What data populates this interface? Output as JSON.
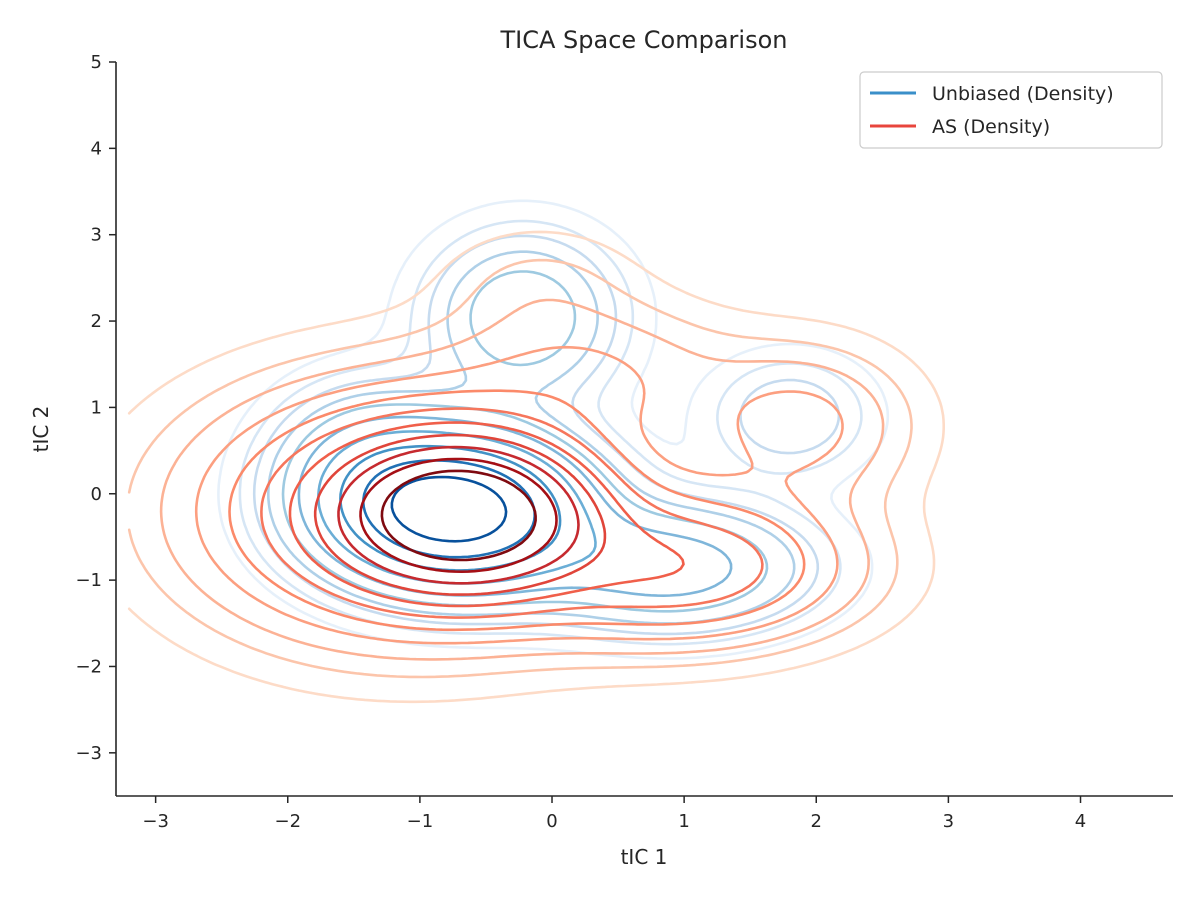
{
  "chart_data": {
    "type": "contour",
    "title": "TICA Space Comparison",
    "xlabel": "tIC 1",
    "ylabel": "tIC 2",
    "xlim": [
      -3.3,
      4.7
    ],
    "ylim": [
      -3.5,
      5.0
    ],
    "xticks": [
      -3,
      -2,
      -1,
      0,
      1,
      2,
      3,
      4
    ],
    "yticks": [
      -3,
      -2,
      -1,
      0,
      1,
      2,
      3,
      4,
      5
    ],
    "xtick_labels": [
      "−3",
      "−2",
      "−1",
      "0",
      "1",
      "2",
      "3",
      "4"
    ],
    "ytick_labels": [
      "−3",
      "−2",
      "−1",
      "0",
      "1",
      "2",
      "3",
      "4",
      "5"
    ],
    "grid": false,
    "legend_position": "top-right",
    "series": [
      {
        "name": "Unbiased (Density)",
        "color": "#3a8fc9",
        "level_colors": [
          "#e6f0fa",
          "#d6e6f5",
          "#c6dbef",
          "#afd0e8",
          "#9ecae1",
          "#7fb6da",
          "#6baed6",
          "#4292c6",
          "#2171b5",
          "#08519c"
        ],
        "components": [
          {
            "mx": -0.72,
            "my": -0.2,
            "sx": 0.6,
            "sy": 0.55,
            "w": 1.0
          },
          {
            "mx": -0.22,
            "my": 2.05,
            "sx": 0.45,
            "sy": 0.6,
            "w": 0.22
          },
          {
            "mx": 0.9,
            "my": -0.85,
            "sx": 0.65,
            "sy": 0.45,
            "w": 0.28
          },
          {
            "mx": 1.8,
            "my": 0.9,
            "sx": 0.4,
            "sy": 0.45,
            "w": 0.1
          },
          {
            "mx": -1.4,
            "my": 0.3,
            "sx": 0.45,
            "sy": 0.6,
            "w": 0.2
          }
        ],
        "levels": [
          0.018,
          0.04,
          0.065,
          0.1,
          0.15,
          0.22,
          0.33,
          0.48,
          0.65,
          0.85
        ]
      },
      {
        "name": "AS (Density)",
        "color": "#e8453c",
        "level_colors": [
          "#fddbc7",
          "#fcc5ab",
          "#fcb295",
          "#fc9f80",
          "#fb8a6a",
          "#f6765c",
          "#f05f4a",
          "#e0453a",
          "#c62a2f",
          "#a50f15",
          "#7f0a10"
        ],
        "components": [
          {
            "mx": -0.68,
            "my": -0.25,
            "sx": 0.55,
            "sy": 0.5,
            "w": 1.0
          },
          {
            "mx": -1.1,
            "my": -0.2,
            "sx": 1.0,
            "sy": 0.9,
            "w": 0.28
          },
          {
            "mx": 1.0,
            "my": -0.85,
            "sx": 0.8,
            "sy": 0.55,
            "w": 0.22
          },
          {
            "mx": 1.9,
            "my": 0.8,
            "sx": 0.55,
            "sy": 0.6,
            "w": 0.09
          },
          {
            "mx": 0.3,
            "my": 1.4,
            "sx": 0.7,
            "sy": 0.55,
            "w": 0.07
          },
          {
            "mx": -0.1,
            "my": 2.45,
            "sx": 0.5,
            "sy": 0.45,
            "w": 0.03
          }
        ],
        "levels": [
          0.014,
          0.03,
          0.05,
          0.08,
          0.12,
          0.175,
          0.25,
          0.35,
          0.48,
          0.64,
          0.82
        ]
      }
    ]
  }
}
